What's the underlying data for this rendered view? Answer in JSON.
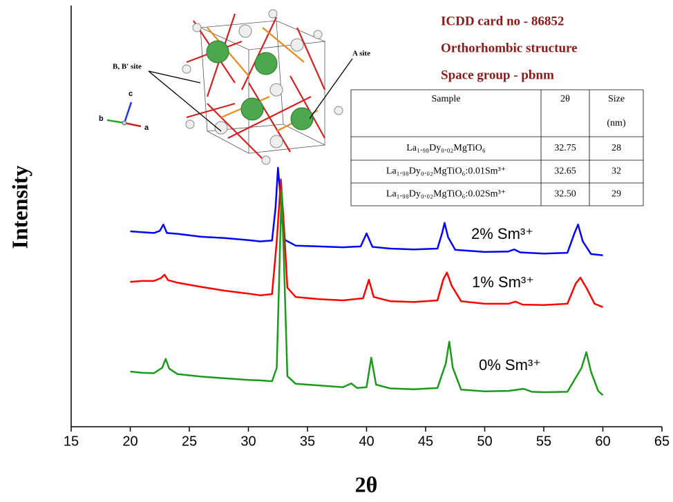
{
  "chart_data": {
    "type": "line",
    "xlabel": "2θ",
    "ylabel": "Intensity",
    "xlim": [
      15,
      65
    ],
    "xticks": [
      15,
      20,
      25,
      30,
      35,
      40,
      45,
      50,
      55,
      60,
      65
    ],
    "ylim": [
      0,
      100
    ],
    "series": [
      {
        "name": "2% Sm³⁺",
        "color": "#0000ff",
        "x": [
          20,
          21,
          22,
          22.5,
          22.8,
          23.1,
          24,
          26,
          28,
          30,
          31,
          32,
          32.3,
          32.5,
          32.7,
          33,
          34,
          36,
          38,
          39.5,
          40,
          40.5,
          42,
          44,
          46,
          46.4,
          46.6,
          46.9,
          47.5,
          50,
          52,
          52.5,
          53,
          55,
          57,
          57.6,
          57.9,
          58.3,
          59,
          60
        ],
        "values": [
          46.4,
          46.2,
          46.0,
          46.5,
          48.0,
          46.0,
          45.8,
          45.1,
          44.8,
          44.3,
          44.0,
          44.2,
          52.0,
          61.5,
          55.0,
          44.5,
          43.0,
          42.8,
          42.6,
          42.8,
          45.9,
          42.7,
          42.3,
          42.1,
          42.3,
          46.0,
          48.4,
          45.0,
          42.0,
          41.5,
          41.6,
          42.1,
          41.4,
          41.1,
          41.3,
          46.0,
          48.0,
          44.0,
          41.0,
          40.7
        ]
      },
      {
        "name": "1% Sm³⁺",
        "color": "#ff0000",
        "x": [
          20,
          21,
          22,
          22.6,
          22.9,
          23.2,
          24,
          26,
          28,
          30,
          31,
          32,
          32.4,
          32.75,
          33.0,
          33.3,
          34,
          36,
          38,
          39.7,
          40.2,
          40.6,
          42,
          44,
          46,
          46.5,
          46.8,
          47.2,
          48,
          50,
          52,
          52.6,
          53.2,
          55,
          57,
          57.7,
          58.1,
          58.6,
          59.3,
          60
        ],
        "values": [
          34.4,
          34.6,
          34.6,
          35.3,
          36.1,
          34.8,
          34.2,
          33.2,
          32.3,
          31.6,
          31.2,
          31.5,
          44.0,
          58.7,
          48.0,
          33.0,
          30.8,
          30.3,
          30.0,
          30.5,
          34.9,
          30.8,
          29.8,
          29.6,
          30.0,
          35.0,
          36.6,
          33.5,
          29.8,
          29.2,
          29.2,
          29.7,
          29.0,
          28.9,
          29.2,
          34.0,
          35.4,
          33.0,
          29.2,
          28.4
        ]
      },
      {
        "name": "0% Sm³⁺",
        "color": "#1a9a1a",
        "x": [
          20,
          21,
          22,
          22.7,
          23,
          23.3,
          24,
          26,
          28,
          30,
          31,
          32,
          32.4,
          32.6,
          32.8,
          33.0,
          33.3,
          34,
          36,
          38,
          38.7,
          39.2,
          40,
          40.4,
          40.8,
          42,
          44,
          46,
          46.7,
          47,
          47.3,
          48,
          50,
          52,
          53.3,
          54,
          55,
          57,
          58.2,
          58.6,
          59,
          59.6,
          60
        ],
        "values": [
          13.1,
          12.8,
          12.7,
          14.0,
          16.1,
          13.8,
          12.5,
          11.9,
          11.5,
          11.1,
          11.0,
          10.8,
          14.0,
          35.0,
          56.2,
          40.0,
          12.0,
          10.2,
          9.8,
          9.4,
          10.3,
          9.2,
          9.4,
          16.4,
          10.0,
          9.1,
          8.9,
          9.2,
          15.0,
          20.2,
          14.0,
          8.8,
          8.4,
          8.5,
          9.0,
          8.3,
          8.2,
          8.3,
          14.0,
          17.7,
          13.0,
          8.5,
          7.5
        ]
      }
    ],
    "annotations": [
      "ICDD card no - 86852",
      "Orthorhombic structure",
      "Space group - pbnm"
    ],
    "structure_labels": {
      "b_site": "B, B' site",
      "a_site": "A site",
      "axis_a": "a",
      "axis_b": "b",
      "axis_c": "c"
    },
    "table": {
      "header": [
        "Sample",
        "2θ",
        "Size"
      ],
      "header_unit": "(nm)",
      "rows": [
        [
          "La₁.₉₈Dy₀.₀₂MgTiO₆",
          "32.75",
          "28"
        ],
        [
          "La₁.₉₈Dy₀.₀₂MgTiO₆:0.01Sm³⁺",
          "32.65",
          "32"
        ],
        [
          "La₁.₉₈Dy₀.₀₂MgTiO₆:0.02Sm³⁺",
          "32.50",
          "29"
        ]
      ]
    }
  }
}
